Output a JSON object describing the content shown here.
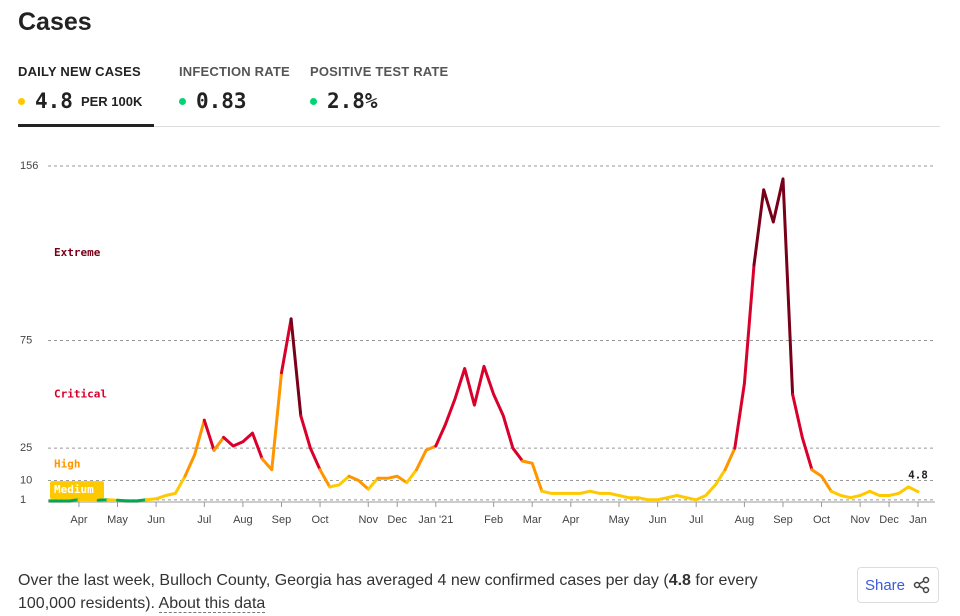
{
  "header": {
    "title": "Cases"
  },
  "tabs": [
    {
      "label": "DAILY NEW CASES",
      "value": "4.8",
      "unit": "PER 100K",
      "color": "#ffc900"
    },
    {
      "label": "INFECTION RATE",
      "value": "0.83",
      "color": "#00d474"
    },
    {
      "label": "POSITIVE TEST RATE",
      "value": "2.8%",
      "color": "#00d474"
    }
  ],
  "chart_data": {
    "type": "line",
    "categories": [
      null,
      null,
      null,
      "Apr",
      null,
      null,
      null,
      "May",
      null,
      null,
      null,
      "Jun",
      null,
      null,
      null,
      null,
      "Jul",
      null,
      null,
      null,
      "Aug",
      null,
      null,
      null,
      "Sep",
      null,
      null,
      null,
      "Oct",
      null,
      null,
      null,
      null,
      "Nov",
      null,
      null,
      "Dec",
      null,
      null,
      null,
      "Jan '21",
      null,
      null,
      null,
      null,
      null,
      "Feb",
      null,
      null,
      null,
      "Mar",
      null,
      null,
      null,
      "Apr",
      null,
      null,
      null,
      null,
      "May",
      null,
      null,
      null,
      "Jun",
      null,
      null,
      null,
      "Jul",
      null,
      null,
      null,
      null,
      "Aug",
      null,
      null,
      null,
      "Sep",
      null,
      null,
      null,
      "Oct",
      null,
      null,
      null,
      "Nov",
      null,
      null,
      "Dec",
      null,
      null,
      "Jan"
    ],
    "series": [
      {
        "name": "Daily new cases per 100K",
        "values": [
          0.5,
          0.5,
          0.5,
          1,
          1,
          0.8,
          1,
          0.8,
          0.5,
          0.5,
          1,
          1.5,
          3,
          4,
          12,
          22,
          38,
          24,
          30,
          26,
          28,
          32,
          20,
          15,
          60,
          85,
          40,
          25,
          15,
          7,
          8,
          12,
          10,
          6,
          11,
          11,
          12,
          9,
          15,
          24,
          26,
          36,
          48,
          62,
          45,
          63,
          50,
          40,
          25,
          19,
          18,
          5,
          4,
          4,
          4,
          4,
          5,
          4,
          4,
          3,
          2,
          2,
          1,
          1,
          2,
          3,
          2,
          1,
          3,
          8,
          15,
          25,
          55,
          110,
          145,
          130,
          150,
          50,
          30,
          15,
          12,
          5,
          3,
          2,
          3,
          5,
          3,
          3,
          4,
          7,
          4.8
        ]
      }
    ],
    "ylim": [
      0,
      156
    ],
    "yticks": [
      1,
      10,
      25,
      75,
      156
    ],
    "grid": true,
    "low_color": "#00a84f",
    "levels": [
      {
        "name": "Medium",
        "color": "#ffc900",
        "from": 1
      },
      {
        "name": "High",
        "color": "#ff9600",
        "from": 10
      },
      {
        "name": "Critical",
        "color": "#d9002c",
        "from": 25
      },
      {
        "name": "Extreme",
        "color": "#790019",
        "from": 75
      }
    ]
  },
  "footer": {
    "text_before": "Over the last week, Bulloch County, Georgia has averaged 4 new confirmed cases per day (",
    "bold": "4.8",
    "text_after": " for every 100,000 residents). ",
    "link": "About this data",
    "share": "Share"
  }
}
